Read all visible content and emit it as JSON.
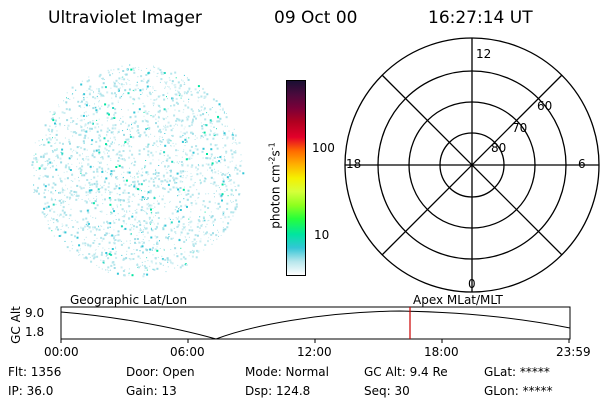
{
  "header": {
    "instrument": "Ultraviolet Imager",
    "date": "09 Oct 00",
    "time": "16:27:14 UT"
  },
  "colorbar": {
    "unit_label": "photon cm",
    "unit_sup1": "-2",
    "unit_s": "s",
    "unit_sup2": "-1",
    "tick_100": "100",
    "tick_10": "10",
    "colors": [
      "#1a0f33",
      "#4b0a3c",
      "#7a0038",
      "#b00020",
      "#e3002a",
      "#ff6a00",
      "#ffb000",
      "#f5f000",
      "#d6ff3a",
      "#8fff1e",
      "#26ff3b",
      "#00e5a0",
      "#33c6d6",
      "#b6e6ec",
      "#ffffff"
    ]
  },
  "polar_plot": {
    "labels": {
      "top": "12",
      "left": "18",
      "right": "6",
      "bottom": "0",
      "lat_60": "60",
      "lat_70": "70",
      "lat_80": "80"
    }
  },
  "timeline": {
    "ylabel": "GC Alt",
    "yticks": [
      "9.0",
      "1.8"
    ],
    "left_title": "Geographic Lat/Lon",
    "right_title": "Apex MLat/MLT",
    "xticks": [
      "00:00",
      "06:00",
      "12:00",
      "18:00",
      "23:59"
    ],
    "marker_color": "#cc0000"
  },
  "status": {
    "flt": "Flt: 1356",
    "ip": "IP: 36.0",
    "door": "Door: Open",
    "gain": "Gain: 13",
    "mode": "Mode: Normal",
    "dsp": "Dsp:   124.8",
    "gc_alt": "GC Alt: 9.4 Re",
    "seq": "Seq: 30",
    "glat": "GLat: *****",
    "glon": "GLon: *****"
  }
}
